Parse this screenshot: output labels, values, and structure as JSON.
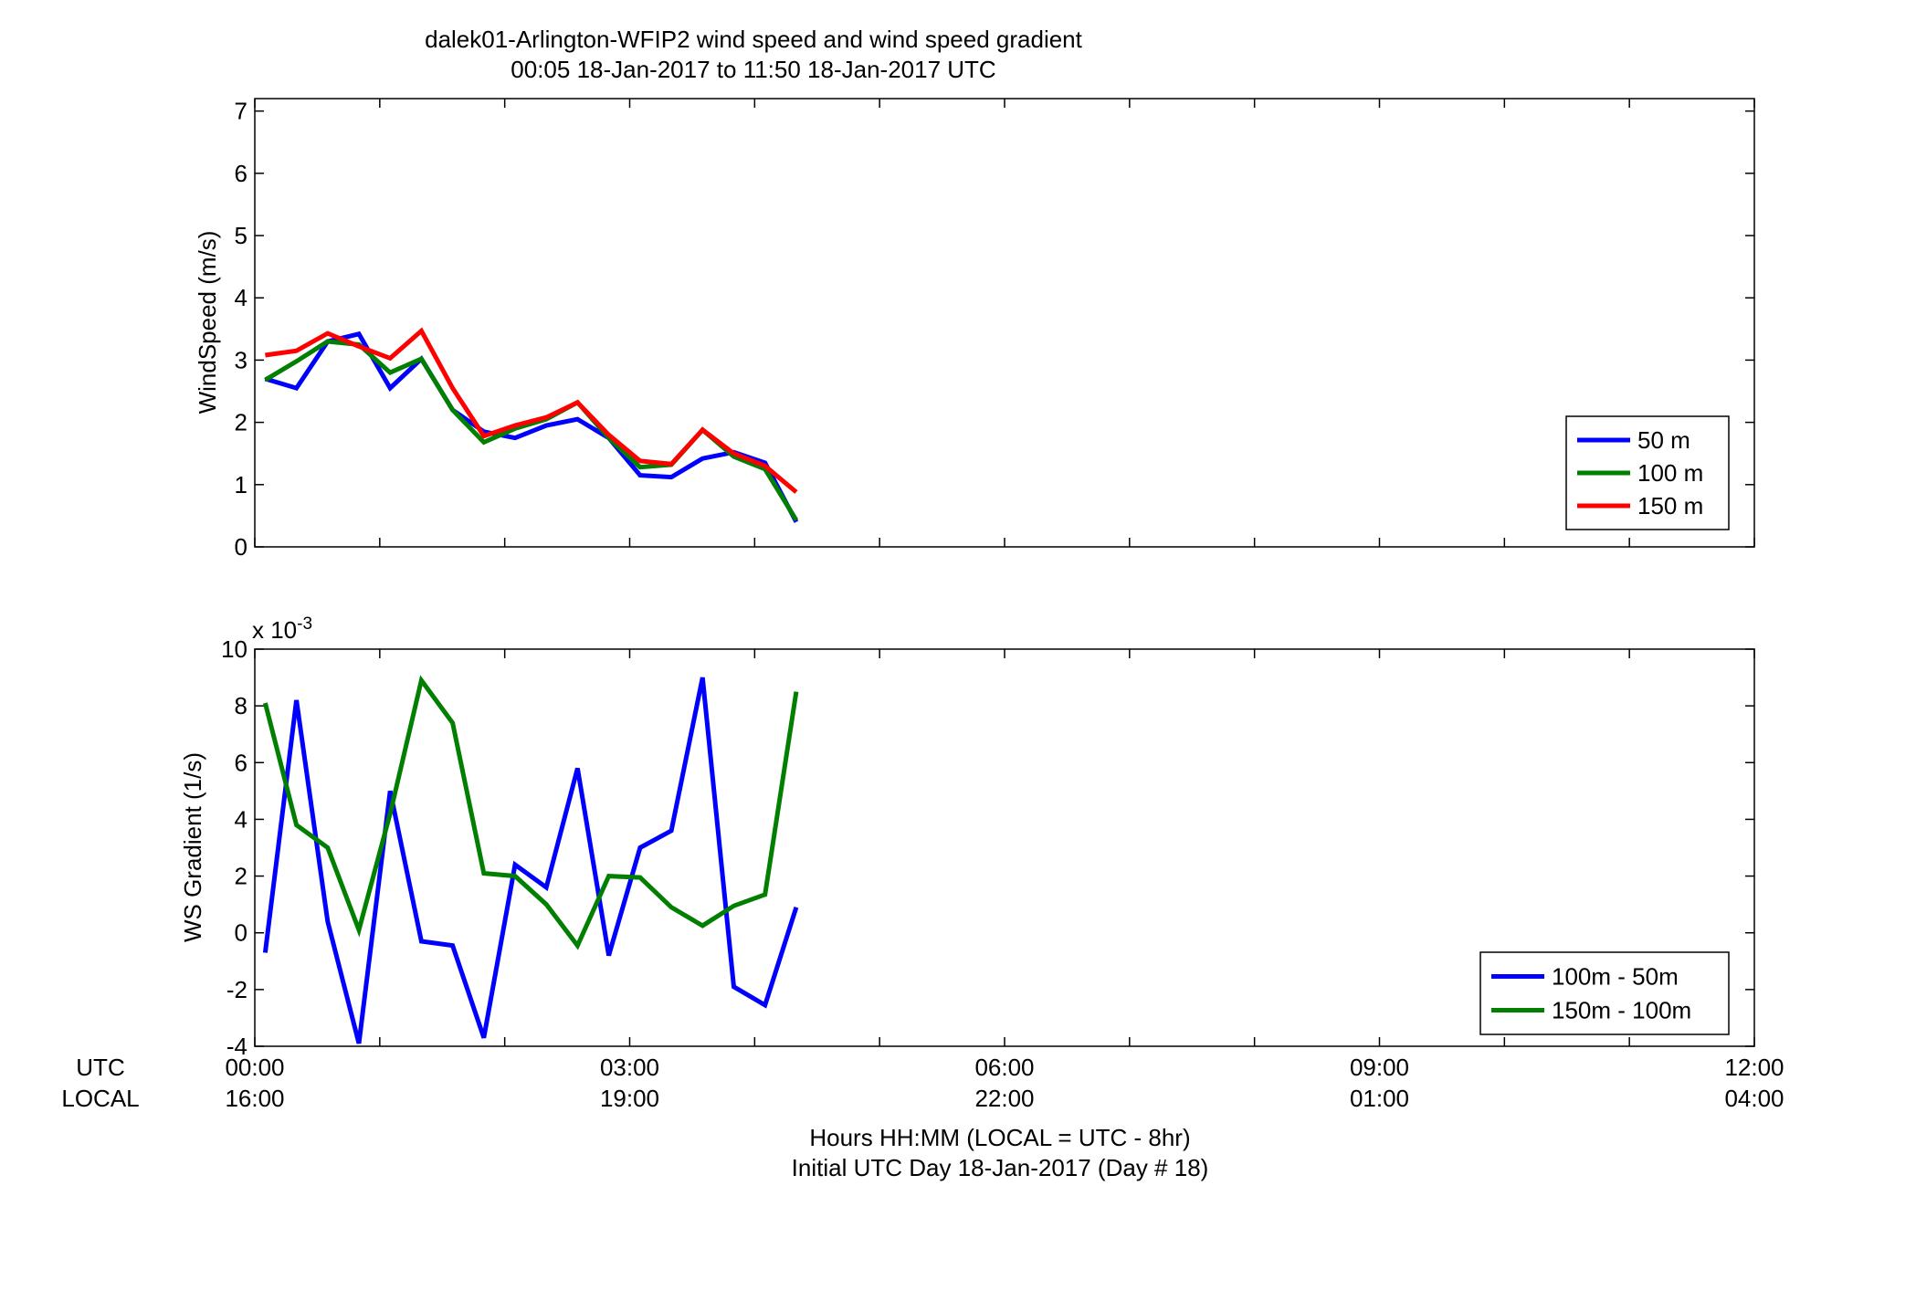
{
  "figure": {
    "title_line1": "dalek01-Arlington-WFIP2  wind speed and wind speed gradient",
    "title_line2": "00:05 18-Jan-2017 to 11:50 18-Jan-2017  UTC",
    "x_caption_line1": "Hours HH:MM  (LOCAL = UTC - 8hr)",
    "x_caption_line2": "Initial UTC Day 18-Jan-2017 (Day # 18)",
    "row_label_utc": "UTC",
    "row_label_local": "LOCAL",
    "x_ticks_utc": [
      "00:00",
      "03:00",
      "06:00",
      "09:00",
      "12:00"
    ],
    "x_ticks_local": [
      "16:00",
      "19:00",
      "22:00",
      "01:00",
      "04:00"
    ]
  },
  "chart_data": [
    {
      "type": "line",
      "ylabel": "WindSpeed (m/s)",
      "xlabel": "Hours HH:MM  (LOCAL = UTC - 8hr)",
      "xlim": [
        0,
        12
      ],
      "ylim": [
        0,
        7.2
      ],
      "y_ticks": [
        "0",
        "1",
        "2",
        "3",
        "4",
        "5",
        "6",
        "7"
      ],
      "legend_position": "lower-right",
      "x": [
        0.083,
        0.333,
        0.583,
        0.833,
        1.083,
        1.333,
        1.583,
        1.833,
        2.083,
        2.333,
        2.583,
        2.833,
        3.083,
        3.333,
        3.583,
        3.833,
        4.083,
        4.333
      ],
      "series": [
        {
          "name": "50 m",
          "color": "#0000ff",
          "values": [
            2.7,
            2.55,
            3.3,
            3.42,
            2.55,
            3.02,
            2.2,
            1.85,
            1.75,
            1.95,
            2.05,
            1.75,
            1.15,
            1.12,
            1.42,
            1.52,
            1.35,
            0.4
          ]
        },
        {
          "name": "100 m",
          "color": "#007f00",
          "values": [
            2.68,
            2.98,
            3.3,
            3.25,
            2.8,
            3.02,
            2.2,
            1.68,
            1.9,
            2.05,
            2.32,
            1.75,
            1.28,
            1.32,
            1.88,
            1.45,
            1.25,
            0.43
          ]
        },
        {
          "name": "150 m",
          "color": "#ff0000",
          "values": [
            3.08,
            3.15,
            3.43,
            3.22,
            3.03,
            3.47,
            2.55,
            1.78,
            1.95,
            2.08,
            2.32,
            1.8,
            1.38,
            1.33,
            1.88,
            1.5,
            1.3,
            0.88
          ]
        }
      ]
    },
    {
      "type": "line",
      "ylabel": "WS Gradient (1/s)",
      "y_multiplier": "x 10",
      "y_multiplier_exponent": "-3",
      "xlim": [
        0,
        12
      ],
      "ylim": [
        -4,
        10
      ],
      "y_ticks": [
        "-4",
        "-2",
        "0",
        "2",
        "4",
        "6",
        "8",
        "10"
      ],
      "legend_position": "lower-right",
      "x": [
        0.083,
        0.333,
        0.583,
        0.833,
        1.083,
        1.333,
        1.583,
        1.833,
        2.083,
        2.333,
        2.583,
        2.833,
        3.083,
        3.333,
        3.583,
        3.833,
        4.083,
        4.333
      ],
      "series": [
        {
          "name": "100m - 50m",
          "color": "#0000ff",
          "values": [
            -0.7,
            8.2,
            0.4,
            -3.9,
            5.0,
            -0.3,
            -0.45,
            -3.7,
            2.4,
            1.6,
            5.8,
            -0.8,
            3.0,
            3.6,
            9.0,
            -1.9,
            -2.55,
            0.9
          ]
        },
        {
          "name": "150m - 100m",
          "color": "#007f00",
          "values": [
            8.1,
            3.8,
            3.0,
            0.1,
            4.2,
            8.9,
            7.4,
            2.1,
            2.0,
            1.0,
            -0.45,
            2.0,
            1.95,
            0.9,
            0.25,
            0.95,
            1.35,
            8.5
          ]
        }
      ]
    }
  ]
}
